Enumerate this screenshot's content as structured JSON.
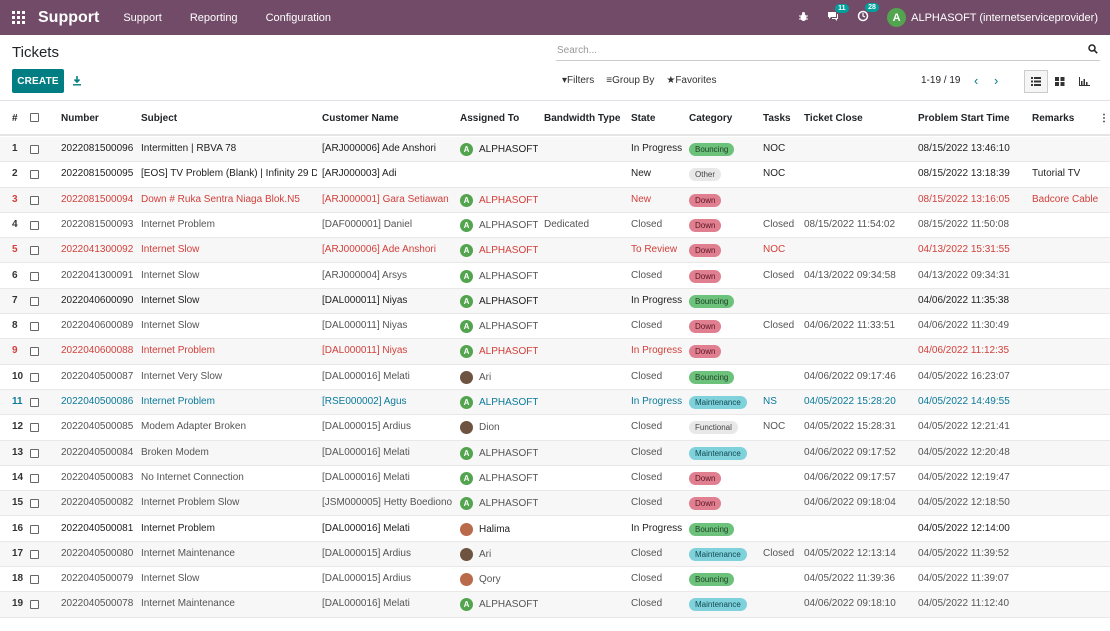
{
  "topbar": {
    "brand": "Support",
    "menu": [
      "Support",
      "Reporting",
      "Configuration"
    ],
    "messages_count": "11",
    "activities_count": "28",
    "user_initial": "A",
    "user_name": "ALPHASOFT (internetserviceprovider)"
  },
  "control": {
    "title": "Tickets",
    "search_placeholder": "Search...",
    "create_label": "CREATE",
    "filters_label": "Filters",
    "groupby_label": "Group By",
    "favorites_label": "Favorites",
    "pager": "1-19 / 19"
  },
  "columns": {
    "num": "#",
    "number": "Number",
    "subject": "Subject",
    "customer": "Customer Name",
    "assigned": "Assigned To",
    "bandwidth": "Bandwidth Type",
    "state": "State",
    "category": "Category",
    "tasks": "Tasks",
    "ticket_close": "Ticket Close",
    "problem_start": "Problem Start Time",
    "remarks": "Remarks"
  },
  "colors": {
    "accent": "#714B67",
    "primary_button": "#017E84"
  },
  "rows": [
    {
      "n": "1",
      "number": "2022081500096",
      "subject": "Intermitten | RBVA 78",
      "customer": "[ARJ000006] Ade Anshori",
      "assigned": "ALPHASOFT",
      "av": "A",
      "bandwidth": "",
      "state": "In Progress",
      "category": "Bouncing",
      "tasks": "NOC",
      "close": "",
      "start": "08/15/2022 13:46:10",
      "remarks": "",
      "style": "bold"
    },
    {
      "n": "2",
      "number": "2022081500095",
      "subject": "[EOS] TV Problem (Blank) | Infinity 29 D",
      "customer": "[ARJ000003] Adi",
      "assigned": "",
      "av": "",
      "bandwidth": "",
      "state": "New",
      "category": "Other",
      "tasks": "NOC",
      "close": "",
      "start": "08/15/2022 13:18:39",
      "remarks": "Tutorial TV",
      "style": "bold"
    },
    {
      "n": "3",
      "number": "2022081500094",
      "subject": "Down # Ruka Sentra Niaga Blok.N5",
      "customer": "[ARJ000001] Gara Setiawan",
      "assigned": "ALPHASOFT",
      "av": "A",
      "bandwidth": "",
      "state": "New",
      "category": "Down",
      "tasks": "",
      "close": "",
      "start": "08/15/2022 13:16:05",
      "remarks": "Badcore Cable",
      "style": "red"
    },
    {
      "n": "4",
      "number": "2022081500093",
      "subject": "Internet Problem",
      "customer": "[DAF000001] Daniel",
      "assigned": "ALPHASOFT",
      "av": "A",
      "bandwidth": "Dedicated",
      "state": "Closed",
      "category": "Down",
      "tasks": "Closed",
      "close": "08/15/2022 11:54:02",
      "start": "08/15/2022 11:50:08",
      "remarks": "",
      "style": "grey"
    },
    {
      "n": "5",
      "number": "2022041300092",
      "subject": "Internet Slow",
      "customer": "[ARJ000006] Ade Anshori",
      "assigned": "ALPHASOFT",
      "av": "A",
      "bandwidth": "",
      "state": "To Review",
      "category": "Down",
      "tasks": "NOC",
      "close": "",
      "start": "04/13/2022 15:31:55",
      "remarks": "",
      "style": "red"
    },
    {
      "n": "6",
      "number": "2022041300091",
      "subject": "Internet Slow",
      "customer": "[ARJ000004] Arsys",
      "assigned": "ALPHASOFT",
      "av": "A",
      "bandwidth": "",
      "state": "Closed",
      "category": "Down",
      "tasks": "Closed",
      "close": "04/13/2022 09:34:58",
      "start": "04/13/2022 09:34:31",
      "remarks": "",
      "style": "grey"
    },
    {
      "n": "7",
      "number": "2022040600090",
      "subject": "Internet Slow",
      "customer": "[DAL000011] Niyas",
      "assigned": "ALPHASOFT",
      "av": "A",
      "bandwidth": "",
      "state": "In Progress",
      "category": "Bouncing",
      "tasks": "",
      "close": "",
      "start": "04/06/2022 11:35:38",
      "remarks": "",
      "style": "bold"
    },
    {
      "n": "8",
      "number": "2022040600089",
      "subject": "Internet Slow",
      "customer": "[DAL000011] Niyas",
      "assigned": "ALPHASOFT",
      "av": "A",
      "bandwidth": "",
      "state": "Closed",
      "category": "Down",
      "tasks": "Closed",
      "close": "04/06/2022 11:33:51",
      "start": "04/06/2022 11:30:49",
      "remarks": "",
      "style": "grey"
    },
    {
      "n": "9",
      "number": "2022040600088",
      "subject": "Internet Problem",
      "customer": "[DAL000011] Niyas",
      "assigned": "ALPHASOFT",
      "av": "A",
      "bandwidth": "",
      "state": "In Progress",
      "category": "Down",
      "tasks": "",
      "close": "",
      "start": "04/06/2022 11:12:35",
      "remarks": "",
      "style": "red"
    },
    {
      "n": "10",
      "number": "2022040500087",
      "subject": "Internet Very Slow",
      "customer": "[DAL000016] Melati",
      "assigned": "Ari",
      "av": "photo",
      "bandwidth": "",
      "state": "Closed",
      "category": "Bouncing",
      "tasks": "",
      "close": "04/06/2022 09:17:46",
      "start": "04/05/2022 16:23:07",
      "remarks": "",
      "style": "grey"
    },
    {
      "n": "11",
      "number": "2022040500086",
      "subject": "Internet Problem",
      "customer": "[RSE000002] Agus",
      "assigned": "ALPHASOFT",
      "av": "A",
      "bandwidth": "",
      "state": "In Progress",
      "category": "Maintenance",
      "tasks": "NS",
      "close": "04/05/2022 15:28:20",
      "start": "04/05/2022 14:49:55",
      "remarks": "",
      "style": "blue"
    },
    {
      "n": "12",
      "number": "2022040500085",
      "subject": "Modem Adapter Broken",
      "customer": "[DAL000015] Ardius",
      "assigned": "Dion",
      "av": "photo",
      "bandwidth": "",
      "state": "Closed",
      "category": "Functional",
      "tasks": "NOC",
      "close": "04/05/2022 15:28:31",
      "start": "04/05/2022 12:21:41",
      "remarks": "",
      "style": "grey"
    },
    {
      "n": "13",
      "number": "2022040500084",
      "subject": "Broken Modem",
      "customer": "[DAL000016] Melati",
      "assigned": "ALPHASOFT",
      "av": "A",
      "bandwidth": "",
      "state": "Closed",
      "category": "Maintenance",
      "tasks": "",
      "close": "04/06/2022 09:17:52",
      "start": "04/05/2022 12:20:48",
      "remarks": "",
      "style": "grey"
    },
    {
      "n": "14",
      "number": "2022040500083",
      "subject": "No Internet Connection",
      "customer": "[DAL000016] Melati",
      "assigned": "ALPHASOFT",
      "av": "A",
      "bandwidth": "",
      "state": "Closed",
      "category": "Down",
      "tasks": "",
      "close": "04/06/2022 09:17:57",
      "start": "04/05/2022 12:19:47",
      "remarks": "",
      "style": "grey"
    },
    {
      "n": "15",
      "number": "2022040500082",
      "subject": "Internet Problem Slow",
      "customer": "[JSM000005] Hetty Boediono",
      "assigned": "ALPHASOFT",
      "av": "A",
      "bandwidth": "",
      "state": "Closed",
      "category": "Down",
      "tasks": "",
      "close": "04/06/2022 09:18:04",
      "start": "04/05/2022 12:18:50",
      "remarks": "",
      "style": "grey"
    },
    {
      "n": "16",
      "number": "2022040500081",
      "subject": "Internet Problem",
      "customer": "[DAL000016] Melati",
      "assigned": "Halima",
      "av": "photo-f",
      "bandwidth": "",
      "state": "In Progress",
      "category": "Bouncing",
      "tasks": "",
      "close": "",
      "start": "04/05/2022 12:14:00",
      "remarks": "",
      "style": "bold"
    },
    {
      "n": "17",
      "number": "2022040500080",
      "subject": "Internet Maintenance",
      "customer": "[DAL000015] Ardius",
      "assigned": "Ari",
      "av": "photo",
      "bandwidth": "",
      "state": "Closed",
      "category": "Maintenance",
      "tasks": "Closed",
      "close": "04/05/2022 12:13:14",
      "start": "04/05/2022 11:39:52",
      "remarks": "",
      "style": "grey"
    },
    {
      "n": "18",
      "number": "2022040500079",
      "subject": "Internet Slow",
      "customer": "[DAL000015] Ardius",
      "assigned": "Qory",
      "av": "photo-f",
      "bandwidth": "",
      "state": "Closed",
      "category": "Bouncing",
      "tasks": "",
      "close": "04/05/2022 11:39:36",
      "start": "04/05/2022 11:39:07",
      "remarks": "",
      "style": "grey"
    },
    {
      "n": "19",
      "number": "2022040500078",
      "subject": "Internet Maintenance",
      "customer": "[DAL000016] Melati",
      "assigned": "ALPHASOFT",
      "av": "A",
      "bandwidth": "",
      "state": "Closed",
      "category": "Maintenance",
      "tasks": "",
      "close": "04/06/2022 09:18:10",
      "start": "04/05/2022 11:12:40",
      "remarks": "",
      "style": "grey"
    }
  ]
}
